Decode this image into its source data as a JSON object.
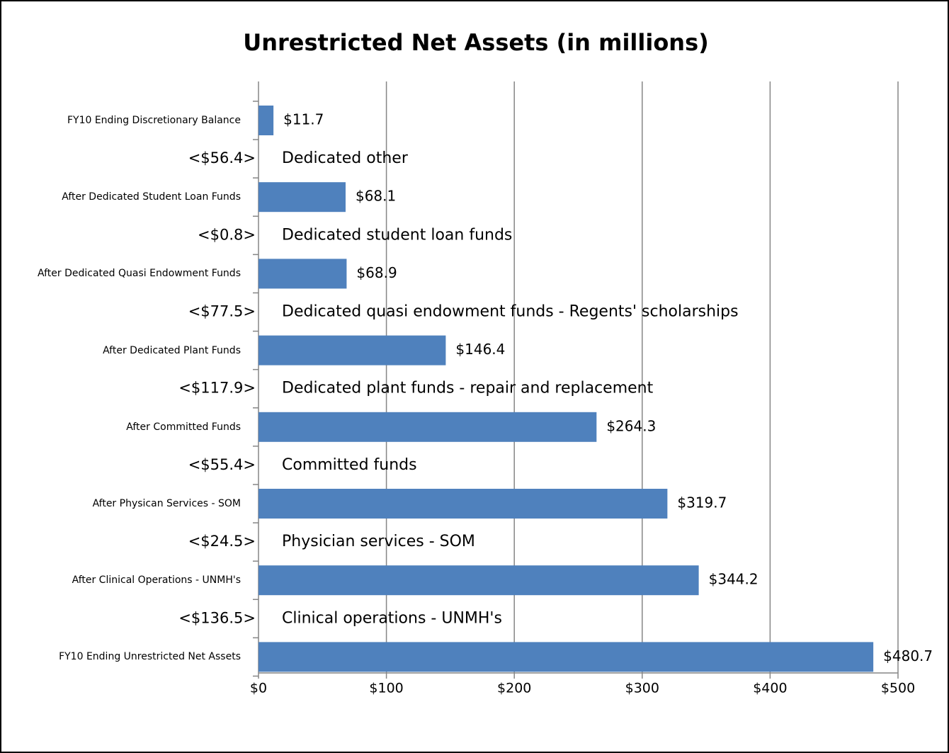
{
  "chart_data": {
    "type": "bar",
    "orientation": "horizontal",
    "title": "Unrestricted Net Assets (in millions)",
    "categories": [
      "FY10 Ending Discretionary Balance",
      "<$56.4>",
      "After Dedicated Student Loan Funds",
      "<$0.8>",
      "After Dedicated Quasi Endowment Funds",
      "<$77.5>",
      "After Dedicated Plant Funds",
      "<$117.9>",
      "After Committed Funds",
      "<$55.4>",
      "After Physican Services - SOM",
      "<$24.5>",
      "After Clinical Operations - UNMH's",
      "<$136.5>",
      "FY10 Ending Unrestricted Net Assets"
    ],
    "values": [
      11.7,
      null,
      68.1,
      null,
      68.9,
      null,
      146.4,
      null,
      264.3,
      null,
      319.7,
      null,
      344.2,
      null,
      480.7
    ],
    "value_labels": [
      "$11.7",
      null,
      "$68.1",
      null,
      "$68.9",
      null,
      "$146.4",
      null,
      "$264.3",
      null,
      "$319.7",
      null,
      "$344.2",
      null,
      "$480.7"
    ],
    "annotations": [
      null,
      "Dedicated other",
      null,
      "Dedicated student loan funds",
      null,
      "Dedicated quasi endowment funds - Regents' scholarships",
      null,
      "Dedicated plant funds - repair and replacement",
      null,
      "Committed funds",
      null,
      "Physician services - SOM",
      null,
      "Clinical operations - UNMH's",
      null
    ],
    "color": "#4f81bd",
    "xlim": [
      0,
      500
    ],
    "xticks": [
      {
        "value": 0,
        "label": "$0"
      },
      {
        "value": 100,
        "label": "$100"
      },
      {
        "value": 200,
        "label": "$200"
      },
      {
        "value": 300,
        "label": "$300"
      },
      {
        "value": 400,
        "label": "$400"
      },
      {
        "value": 500,
        "label": "$500"
      }
    ],
    "grid": true
  }
}
